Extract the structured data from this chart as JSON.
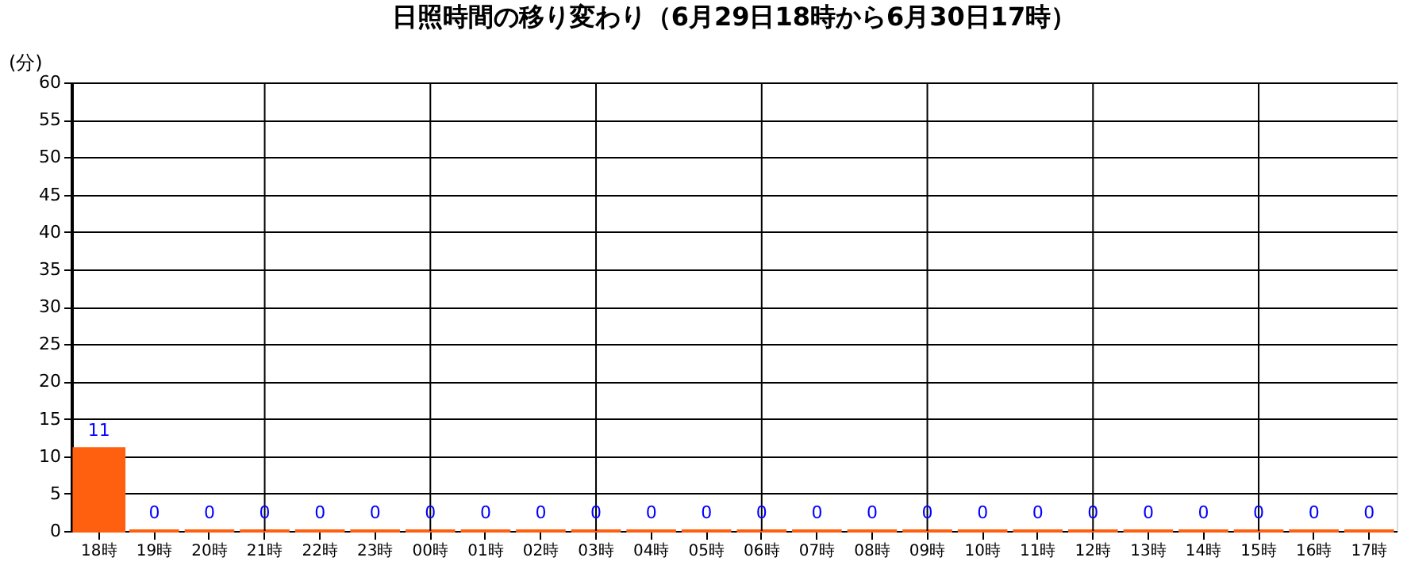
{
  "chart_data": {
    "type": "bar",
    "title": "日照時間の移り変わり（6月29日18時から6月30日17時）",
    "ylabel": "(分)",
    "categories": [
      "18時",
      "19時",
      "20時",
      "21時",
      "22時",
      "23時",
      "00時",
      "01時",
      "02時",
      "03時",
      "04時",
      "05時",
      "06時",
      "07時",
      "08時",
      "09時",
      "10時",
      "11時",
      "12時",
      "13時",
      "14時",
      "15時",
      "16時",
      "17時"
    ],
    "values": [
      11,
      0,
      0,
      0,
      0,
      0,
      0,
      0,
      0,
      0,
      0,
      0,
      0,
      0,
      0,
      0,
      0,
      0,
      0,
      0,
      0,
      0,
      0,
      0
    ],
    "color": "#ff6010",
    "ylim": [
      0,
      60
    ],
    "yticks": [
      0,
      5,
      10,
      15,
      20,
      25,
      30,
      35,
      40,
      45,
      50,
      55,
      60
    ],
    "grid": "y",
    "data_labels": true,
    "ref_lines": [
      {
        "axis": "x",
        "value": "21時",
        "color": "#000000"
      },
      {
        "axis": "x",
        "value": "00時",
        "color": "#000000"
      },
      {
        "axis": "x",
        "value": "03時",
        "color": "#000000"
      },
      {
        "axis": "x",
        "value": "06時",
        "color": "#000000"
      },
      {
        "axis": "x",
        "value": "09時",
        "color": "#000000"
      },
      {
        "axis": "x",
        "value": "12時",
        "color": "#000000"
      },
      {
        "axis": "x",
        "value": "15時",
        "color": "#000000"
      }
    ]
  }
}
